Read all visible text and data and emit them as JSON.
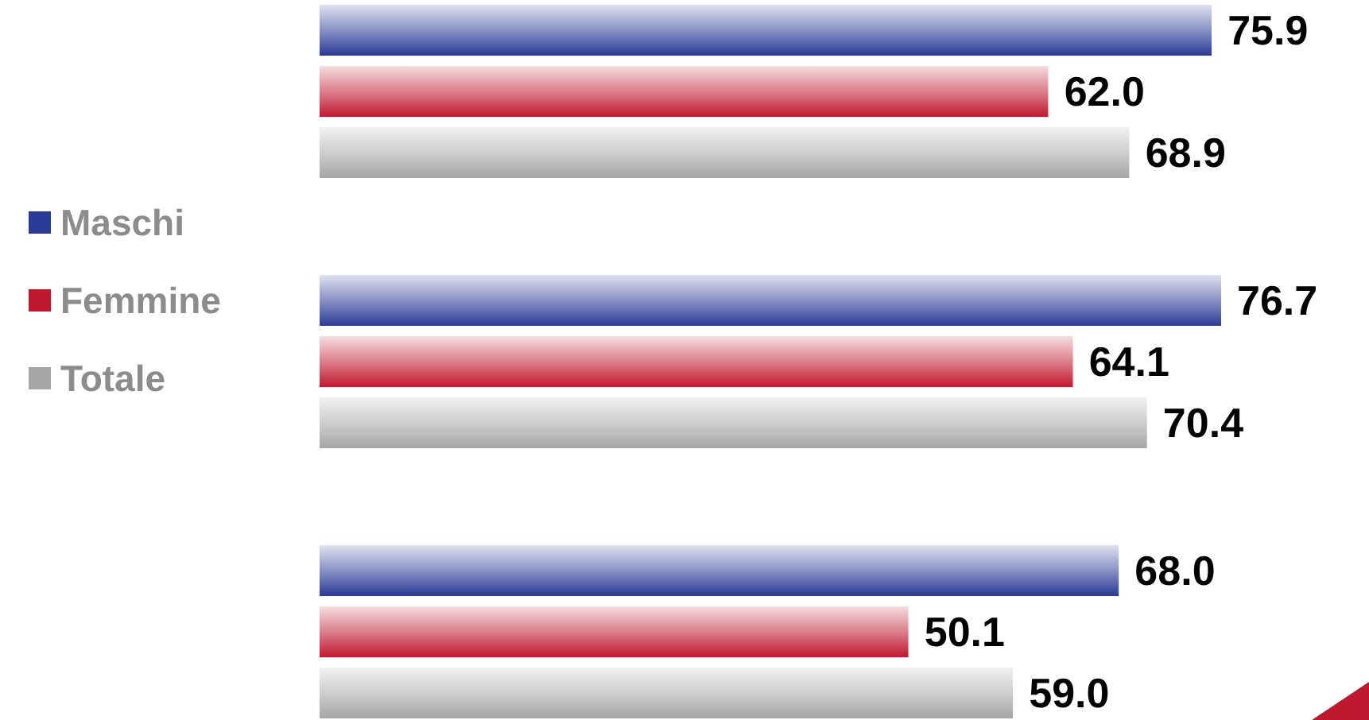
{
  "chart_data": {
    "type": "bar",
    "orientation": "horizontal",
    "categories": [
      null,
      null,
      null
    ],
    "series": [
      {
        "name": "Maschi",
        "color": "#2a3a96",
        "values": [
          75.9,
          76.7,
          68.0
        ],
        "value_labels": [
          "75.9",
          "76.7",
          "68.0"
        ]
      },
      {
        "name": "Femmine",
        "color": "#c0182f",
        "values": [
          62.0,
          64.1,
          50.1
        ],
        "value_labels": [
          "62.0",
          "64.1",
          "50.1"
        ]
      },
      {
        "name": "Totale",
        "color": "#a6a6a6",
        "values": [
          68.9,
          70.4,
          59.0
        ],
        "value_labels": [
          "68.9",
          "70.4",
          "59.0"
        ]
      }
    ],
    "legend": "left",
    "grid": false
  }
}
